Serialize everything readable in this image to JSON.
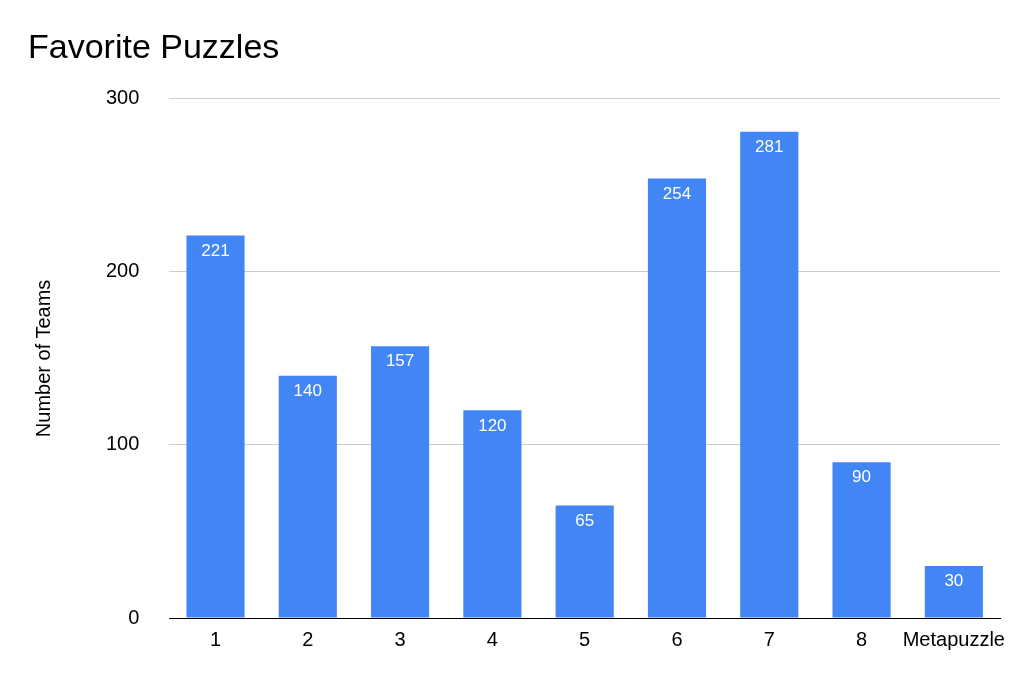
{
  "chart_data": {
    "type": "bar",
    "title": "Favorite Puzzles",
    "ylabel": "Number of Teams",
    "categories": [
      "1",
      "2",
      "3",
      "4",
      "5",
      "6",
      "7",
      "8",
      "Metapuzzle"
    ],
    "values": [
      221,
      140,
      157,
      120,
      65,
      254,
      281,
      90,
      30
    ],
    "color": "#4285f4",
    "ylim": [
      0,
      300
    ],
    "yticks": [
      0,
      100,
      200,
      300
    ],
    "grid": "y",
    "legend": false,
    "data_labels": true
  }
}
